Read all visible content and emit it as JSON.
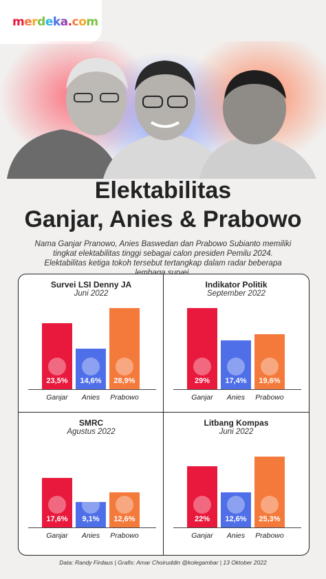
{
  "logo": {
    "text": "merdeka.com"
  },
  "title_line1": "Elektabilitas",
  "title_line2": "Ganjar, Anies & Prabowo",
  "intro": "Nama Ganjar Pranowo, Anies Baswedan dan Prabowo Subianto memiliki tingkat elektabilitas tinggi sebagai calon presiden Pemilu 2024. Elektabilitas ketiga tokoh tersebut tertangkap dalam radar beberapa lembaga survei.",
  "colors": {
    "ganjar": "#e8193c",
    "anies": "#4f6fe8",
    "prabowo": "#f47a3c"
  },
  "chart_data": [
    {
      "type": "bar",
      "title": "Survei LSI Denny JA",
      "subtitle": "Juni 2022",
      "categories": [
        "Ganjar",
        "Anies",
        "Prabowo"
      ],
      "values": [
        23.5,
        14.6,
        28.9
      ],
      "labels": [
        "23,5%",
        "14,6%",
        "28,9%"
      ]
    },
    {
      "type": "bar",
      "title": "Indikator Politik",
      "subtitle": "September 2022",
      "categories": [
        "Ganjar",
        "Anies",
        "Prabowo"
      ],
      "values": [
        29,
        17.4,
        19.6
      ],
      "labels": [
        "29%",
        "17,4%",
        "19,6%"
      ]
    },
    {
      "type": "bar",
      "title": "SMRC",
      "subtitle": "Agustus 2022",
      "categories": [
        "Ganjar",
        "Anies",
        "Prabowo"
      ],
      "values": [
        17.6,
        9.1,
        12.6
      ],
      "labels": [
        "17,6%",
        "9,1%",
        "12,6%"
      ]
    },
    {
      "type": "bar",
      "title": "Litbang Kompas",
      "subtitle": "Juni 2022",
      "categories": [
        "Ganjar",
        "Anies",
        "Prabowo"
      ],
      "values": [
        22,
        12.6,
        25.3
      ],
      "labels": [
        "22%",
        "12,6%",
        "25,3%"
      ]
    }
  ],
  "footer": "Data: Randy Firdaus  |  Grafis: Amar Choiruddin @kolegambar  |  13 Oktober 2022"
}
